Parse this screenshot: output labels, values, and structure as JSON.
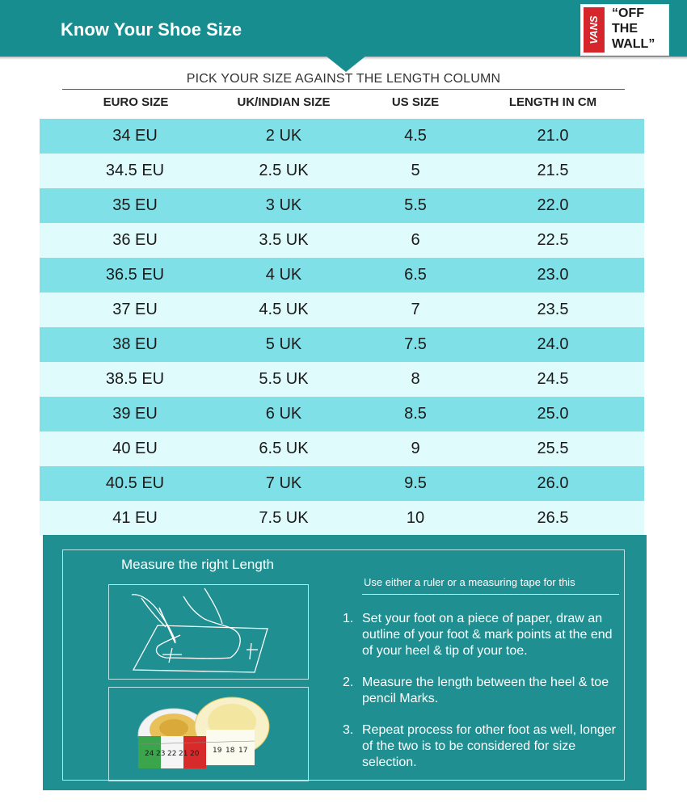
{
  "header": {
    "title": "Know Your Shoe Size"
  },
  "logo": {
    "brand": "VANS",
    "slogan_lines": [
      "“OFF",
      "THE",
      "WALL”"
    ]
  },
  "table": {
    "caption": "PICK YOUR SIZE AGAINST THE LENGTH COLUMN",
    "columns": [
      "EURO SIZE",
      "UK/INDIAN SIZE",
      "US SIZE",
      "LENGTH IN CM"
    ],
    "rows": [
      [
        "34 EU",
        "2 UK",
        "4.5",
        "21.0"
      ],
      [
        "34.5 EU",
        "2.5 UK",
        "5",
        "21.5"
      ],
      [
        "35 EU",
        "3 UK",
        "5.5",
        "22.0"
      ],
      [
        "36 EU",
        "3.5 UK",
        "6",
        "22.5"
      ],
      [
        "36.5 EU",
        "4 UK",
        "6.5",
        "23.0"
      ],
      [
        "37 EU",
        "4.5 UK",
        "7",
        "23.5"
      ],
      [
        "38 EU",
        "5 UK",
        "7.5",
        "24.0"
      ],
      [
        "38.5 EU",
        "5.5 UK",
        "8",
        "24.5"
      ],
      [
        "39 EU",
        "6 UK",
        "8.5",
        "25.0"
      ],
      [
        "40 EU",
        "6.5 UK",
        "9",
        "25.5"
      ],
      [
        "40.5 EU",
        "7 UK",
        "9.5",
        "26.0"
      ],
      [
        "41 EU",
        "7.5 UK",
        "10",
        "26.5"
      ]
    ]
  },
  "measure": {
    "title": "Measure the right Length",
    "tip": "Use either a ruler or a measuring tape for this",
    "steps": [
      {
        "num": "1.",
        "text": "Set your foot on a piece of paper, draw an outline of your foot & mark points at the end of your heel & tip of your toe."
      },
      {
        "num": "2.",
        "text": "Measure the length between the heel & toe pencil Marks."
      },
      {
        "num": "3.",
        "text": "Repeat process for other foot as well, longer of the two is to be considered for size selection."
      }
    ],
    "tape_numbers": [
      "24",
      "23",
      "22",
      "21",
      "20",
      "19",
      "18",
      "17"
    ]
  },
  "colors": {
    "teal": "#178d90",
    "row_dark": "#7fe0e8",
    "row_light": "#dffbfc",
    "logo_red": "#d6262c"
  }
}
